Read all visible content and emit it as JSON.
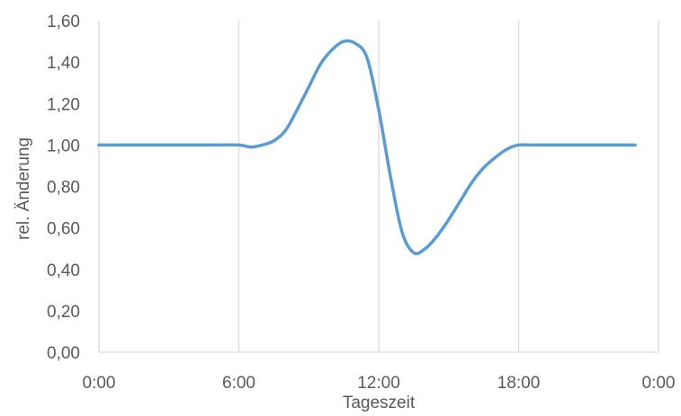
{
  "chart_data": {
    "type": "line",
    "title": "",
    "xlabel": "Tageszeit",
    "ylabel": "rel. Änderung",
    "x_unit": "hours",
    "xlim": [
      0,
      24
    ],
    "ylim": [
      0,
      1.6
    ],
    "x_ticks": [
      {
        "value": 0,
        "label": "0:00"
      },
      {
        "value": 6,
        "label": "6:00"
      },
      {
        "value": 12,
        "label": "12:00"
      },
      {
        "value": 18,
        "label": "18:00"
      },
      {
        "value": 24,
        "label": "0:00"
      }
    ],
    "y_ticks": [
      {
        "value": 0.0,
        "label": "0,00"
      },
      {
        "value": 0.2,
        "label": "0,20"
      },
      {
        "value": 0.4,
        "label": "0,40"
      },
      {
        "value": 0.6,
        "label": "0,60"
      },
      {
        "value": 0.8,
        "label": "0,80"
      },
      {
        "value": 1.0,
        "label": "1,00"
      },
      {
        "value": 1.2,
        "label": "1,20"
      },
      {
        "value": 1.4,
        "label": "1,40"
      },
      {
        "value": 1.6,
        "label": "1,60"
      }
    ],
    "grid": {
      "vertical": true,
      "horizontal": false
    },
    "legend": "none",
    "series": [
      {
        "color": "#5B9BD5",
        "x": [
          0,
          1,
          2,
          3,
          4,
          5,
          6,
          6.5,
          7,
          7.5,
          8,
          8.5,
          9,
          9.5,
          10,
          10.5,
          11,
          11.5,
          12,
          12.5,
          13,
          13.5,
          14,
          14.5,
          15,
          15.5,
          16,
          16.5,
          17,
          17.5,
          18,
          18.5,
          19,
          19.5,
          20,
          21,
          22,
          23
        ],
        "y": [
          1.0,
          1.0,
          1.0,
          1.0,
          1.0,
          1.0,
          1.0,
          0.99,
          1.0,
          1.02,
          1.07,
          1.17,
          1.28,
          1.39,
          1.46,
          1.5,
          1.49,
          1.42,
          1.17,
          0.85,
          0.58,
          0.48,
          0.5,
          0.56,
          0.64,
          0.73,
          0.82,
          0.89,
          0.94,
          0.98,
          1.0,
          1.0,
          1.0,
          1.0,
          1.0,
          1.0,
          1.0,
          1.0
        ]
      }
    ]
  }
}
